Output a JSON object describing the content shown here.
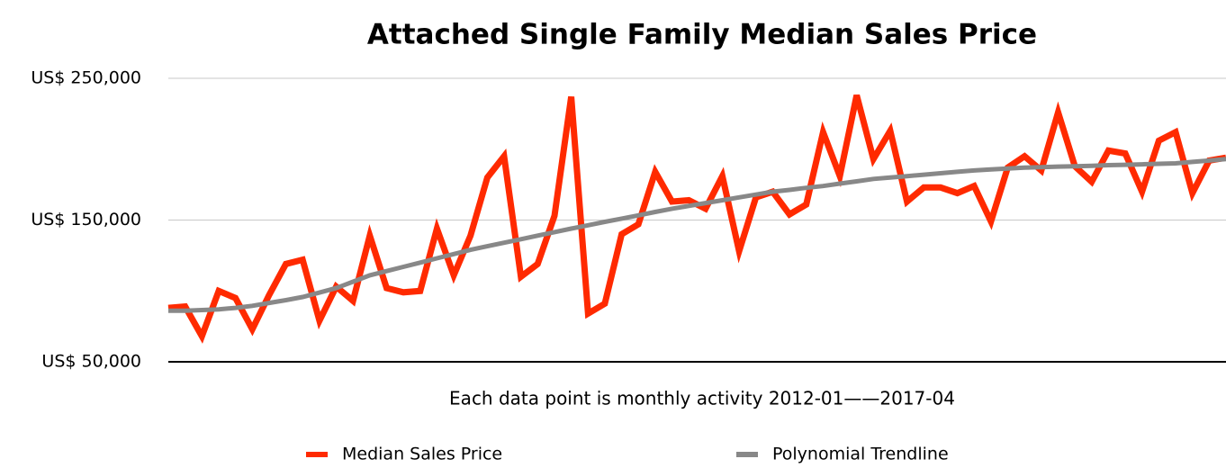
{
  "chart_data": {
    "type": "line",
    "title": "Attached Single Family Median Sales Price",
    "x_label": "Each data point is monthly activity 2012-01——2017-04",
    "ylim": [
      50000,
      250000
    ],
    "yticks": [
      {
        "value": 50000,
        "label": "US$ 50,000"
      },
      {
        "value": 150000,
        "label": "US$ 150,000"
      },
      {
        "value": 250000,
        "label": "US$ 250,000"
      }
    ],
    "grid": true,
    "legend": "bottom",
    "series": [
      {
        "name": "Median Sales Price",
        "color": "#ff2a00",
        "values": [
          88000,
          89000,
          68000,
          100000,
          95000,
          73000,
          97000,
          119000,
          122000,
          79000,
          103000,
          93000,
          139000,
          102000,
          99000,
          100000,
          144000,
          111000,
          139000,
          180000,
          195000,
          110000,
          119000,
          153000,
          237000,
          84000,
          91000,
          140000,
          147000,
          184000,
          163000,
          164000,
          158000,
          181000,
          128000,
          166000,
          170000,
          154000,
          161000,
          212000,
          181000,
          238000,
          193000,
          213000,
          163000,
          173000,
          173000,
          169000,
          174000,
          149000,
          187000,
          195000,
          185000,
          226000,
          188000,
          177000,
          199000,
          197000,
          170000,
          206000,
          212000,
          169000,
          192000,
          194000
        ]
      },
      {
        "name": "Polynomial Trendline",
        "color": "#888888",
        "values": [
          86000,
          86000,
          86500,
          87000,
          88000,
          89500,
          91500,
          93500,
          95700,
          98800,
          102000,
          106500,
          111000,
          114000,
          117000,
          120000,
          123000,
          126000,
          129000,
          131500,
          134000,
          136500,
          139000,
          141500,
          144000,
          146300,
          148700,
          151000,
          153300,
          155700,
          158000,
          160000,
          162000,
          164000,
          166000,
          168000,
          170000,
          171300,
          172700,
          174000,
          175700,
          177300,
          179000,
          180000,
          181000,
          182000,
          183000,
          184000,
          185000,
          185700,
          186300,
          187000,
          187300,
          187700,
          188000,
          188300,
          188700,
          189000,
          189300,
          189700,
          190000,
          191000,
          192000,
          193000
        ]
      }
    ]
  }
}
